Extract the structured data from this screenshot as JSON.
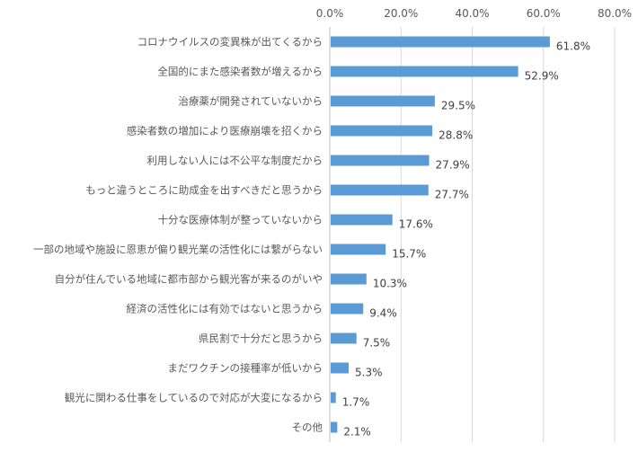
{
  "chart_data": {
    "type": "bar",
    "orientation": "horizontal",
    "title": "",
    "xlabel": "",
    "ylabel": "",
    "xlim": [
      0,
      80
    ],
    "ticks": [
      "0.0%",
      "20.0%",
      "40.0%",
      "60.0%",
      "80.0%"
    ],
    "tick_values": [
      0,
      20,
      40,
      60,
      80
    ],
    "grid": true,
    "bar_color": "#5b9bd5",
    "categories": [
      "コロナウイルスの変異株が出てくるから",
      "全国的にまた感染者数が増えるから",
      "治療薬が開発されていないから",
      "感染者数の増加により医療崩壊を招くから",
      "利用しない人には不公平な制度だから",
      "もっと違うところに助成金を出すべきだと思うから",
      "十分な医療体制が整っていないから",
      "一部の地域や施設に恩恵が偏り観光業の活性化には繋がらない",
      "自分が住んでいる地域に都市部から観光客が来るのがいや",
      "経済の活性化には有効ではないと思うから",
      "県民割で十分だと思うから",
      "まだワクチンの接種率が低いから",
      "観光に関わる仕事をしているので対応が大変になるから",
      "その他"
    ],
    "values": [
      61.8,
      52.9,
      29.5,
      28.8,
      27.9,
      27.7,
      17.6,
      15.7,
      10.3,
      9.4,
      7.5,
      5.3,
      1.7,
      2.1
    ],
    "value_labels": [
      "61.8%",
      "52.9%",
      "29.5%",
      "28.8%",
      "27.9%",
      "27.7%",
      "17.6%",
      "15.7%",
      "10.3%",
      "9.4%",
      "7.5%",
      "5.3%",
      "1.7%",
      "2.1%"
    ]
  }
}
